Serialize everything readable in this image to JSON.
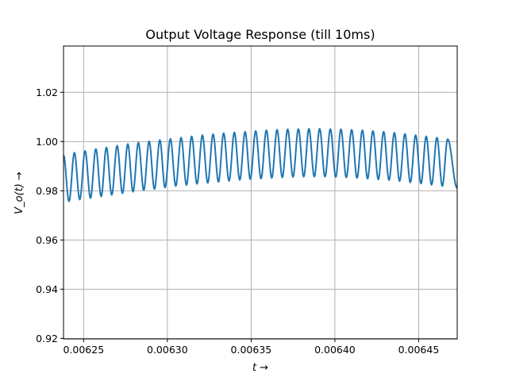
{
  "chart_data": {
    "type": "line",
    "title": "Output Voltage Response (till 10ms)",
    "xlabel": "t →",
    "ylabel": "V_o(t) →",
    "xlim": [
      0.006238,
      0.006473
    ],
    "ylim": [
      0.9198,
      1.0388
    ],
    "xticks": [
      {
        "value": 0.00625,
        "label": "0.00625"
      },
      {
        "value": 0.0063,
        "label": "0.00630"
      },
      {
        "value": 0.00635,
        "label": "0.00635"
      },
      {
        "value": 0.0064,
        "label": "0.00640"
      },
      {
        "value": 0.00645,
        "label": "0.00645"
      }
    ],
    "yticks": [
      {
        "value": 0.92,
        "label": "0.92"
      },
      {
        "value": 0.94,
        "label": "0.94"
      },
      {
        "value": 0.96,
        "label": "0.96"
      },
      {
        "value": 0.98,
        "label": "0.98"
      },
      {
        "value": 1.0,
        "label": "1.00"
      },
      {
        "value": 1.02,
        "label": "1.02"
      }
    ],
    "grid": true,
    "series": [
      {
        "color": "#1f77b4",
        "ripple_period": 6.36e-06,
        "extrema": [
          [
            0.006238,
            0.9945
          ],
          [
            0.0062413,
            0.9757
          ],
          [
            0.0062445,
            0.9955
          ],
          [
            0.0062477,
            0.9764
          ],
          [
            0.0062509,
            0.9962
          ],
          [
            0.0062541,
            0.977
          ],
          [
            0.0062573,
            0.997
          ],
          [
            0.0062605,
            0.9777
          ],
          [
            0.0062636,
            0.9976
          ],
          [
            0.0062668,
            0.9783
          ],
          [
            0.00627,
            0.9983
          ],
          [
            0.0062732,
            0.979
          ],
          [
            0.0062764,
            0.999
          ],
          [
            0.0062795,
            0.9796
          ],
          [
            0.0062827,
            0.9996
          ],
          [
            0.0062859,
            0.9802
          ],
          [
            0.0062891,
            1.0001
          ],
          [
            0.0062923,
            0.9807
          ],
          [
            0.0062955,
            1.0006
          ],
          [
            0.0062986,
            0.9813
          ],
          [
            0.0063018,
            1.0011
          ],
          [
            0.006305,
            0.9819
          ],
          [
            0.0063082,
            1.0016
          ],
          [
            0.0063114,
            0.9823
          ],
          [
            0.0063145,
            1.0021
          ],
          [
            0.0063177,
            0.9828
          ],
          [
            0.0063209,
            1.0026
          ],
          [
            0.0063241,
            0.9832
          ],
          [
            0.0063273,
            1.003
          ],
          [
            0.0063305,
            0.9836
          ],
          [
            0.0063336,
            1.0034
          ],
          [
            0.0063368,
            0.984
          ],
          [
            0.00634,
            1.0037
          ],
          [
            0.0063432,
            0.9844
          ],
          [
            0.0063464,
            1.004
          ],
          [
            0.0063495,
            0.9847
          ],
          [
            0.0063527,
            1.0043
          ],
          [
            0.0063559,
            0.9849
          ],
          [
            0.0063591,
            1.0046
          ],
          [
            0.0063623,
            0.9852
          ],
          [
            0.0063655,
            1.0048
          ],
          [
            0.0063686,
            0.9854
          ],
          [
            0.0063718,
            1.005
          ],
          [
            0.006375,
            0.9856
          ],
          [
            0.0063782,
            1.0051
          ],
          [
            0.0063814,
            0.9857
          ],
          [
            0.0063845,
            1.0052
          ],
          [
            0.0063877,
            0.9857
          ],
          [
            0.0063909,
            1.0052
          ],
          [
            0.0063941,
            0.9857
          ],
          [
            0.0063973,
            1.0051
          ],
          [
            0.0064005,
            0.9856
          ],
          [
            0.0064036,
            1.005
          ],
          [
            0.0064068,
            0.9854
          ],
          [
            0.00641,
            1.0048
          ],
          [
            0.0064132,
            0.9852
          ],
          [
            0.0064164,
            1.0046
          ],
          [
            0.0064195,
            0.9849
          ],
          [
            0.0064227,
            1.0043
          ],
          [
            0.0064259,
            0.9846
          ],
          [
            0.0064291,
            1.004
          ],
          [
            0.0064323,
            0.9843
          ],
          [
            0.0064355,
            1.0036
          ],
          [
            0.0064386,
            0.9839
          ],
          [
            0.0064418,
            1.0031
          ],
          [
            0.006445,
            0.9834
          ],
          [
            0.0064482,
            1.0026
          ],
          [
            0.0064514,
            0.9829
          ],
          [
            0.0064545,
            1.0021
          ],
          [
            0.0064577,
            0.9824
          ],
          [
            0.0064609,
            1.0016
          ],
          [
            0.0064641,
            0.9819
          ],
          [
            0.0064673,
            1.001
          ],
          [
            0.006473,
            0.981
          ]
        ]
      }
    ]
  }
}
